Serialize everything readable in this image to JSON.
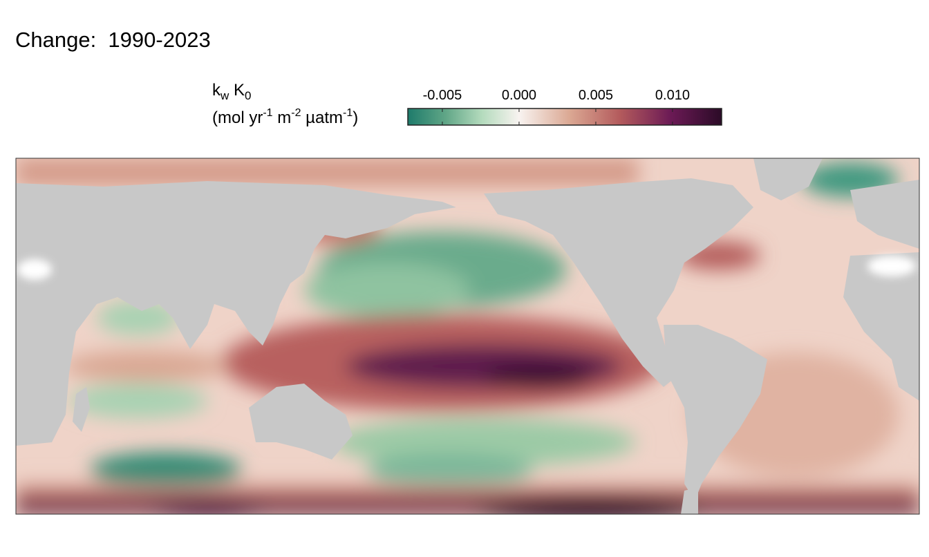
{
  "chart_data": {
    "type": "map",
    "title": "Change:  1990-2023",
    "colorbar": {
      "title": [
        "k",
        "w",
        " K",
        "0"
      ],
      "units": [
        "(mol yr",
        "-1",
        " m",
        "-2",
        " µatm",
        "-1",
        ")"
      ],
      "lim": [
        -0.00725,
        0.0132
      ],
      "ticks": [
        -0.005,
        {
          "value": 0,
          "label": "0.000"
        },
        0.005,
        {
          "value": 0.01,
          "label": "0.010"
        }
      ],
      "colors": [
        "#1e7b6b",
        "#5fa586",
        "#b4dbbd",
        "#f8f3f0",
        "#dba893",
        "#b35a5c",
        "#6b1a55",
        "#2b0b27"
      ]
    }
  }
}
